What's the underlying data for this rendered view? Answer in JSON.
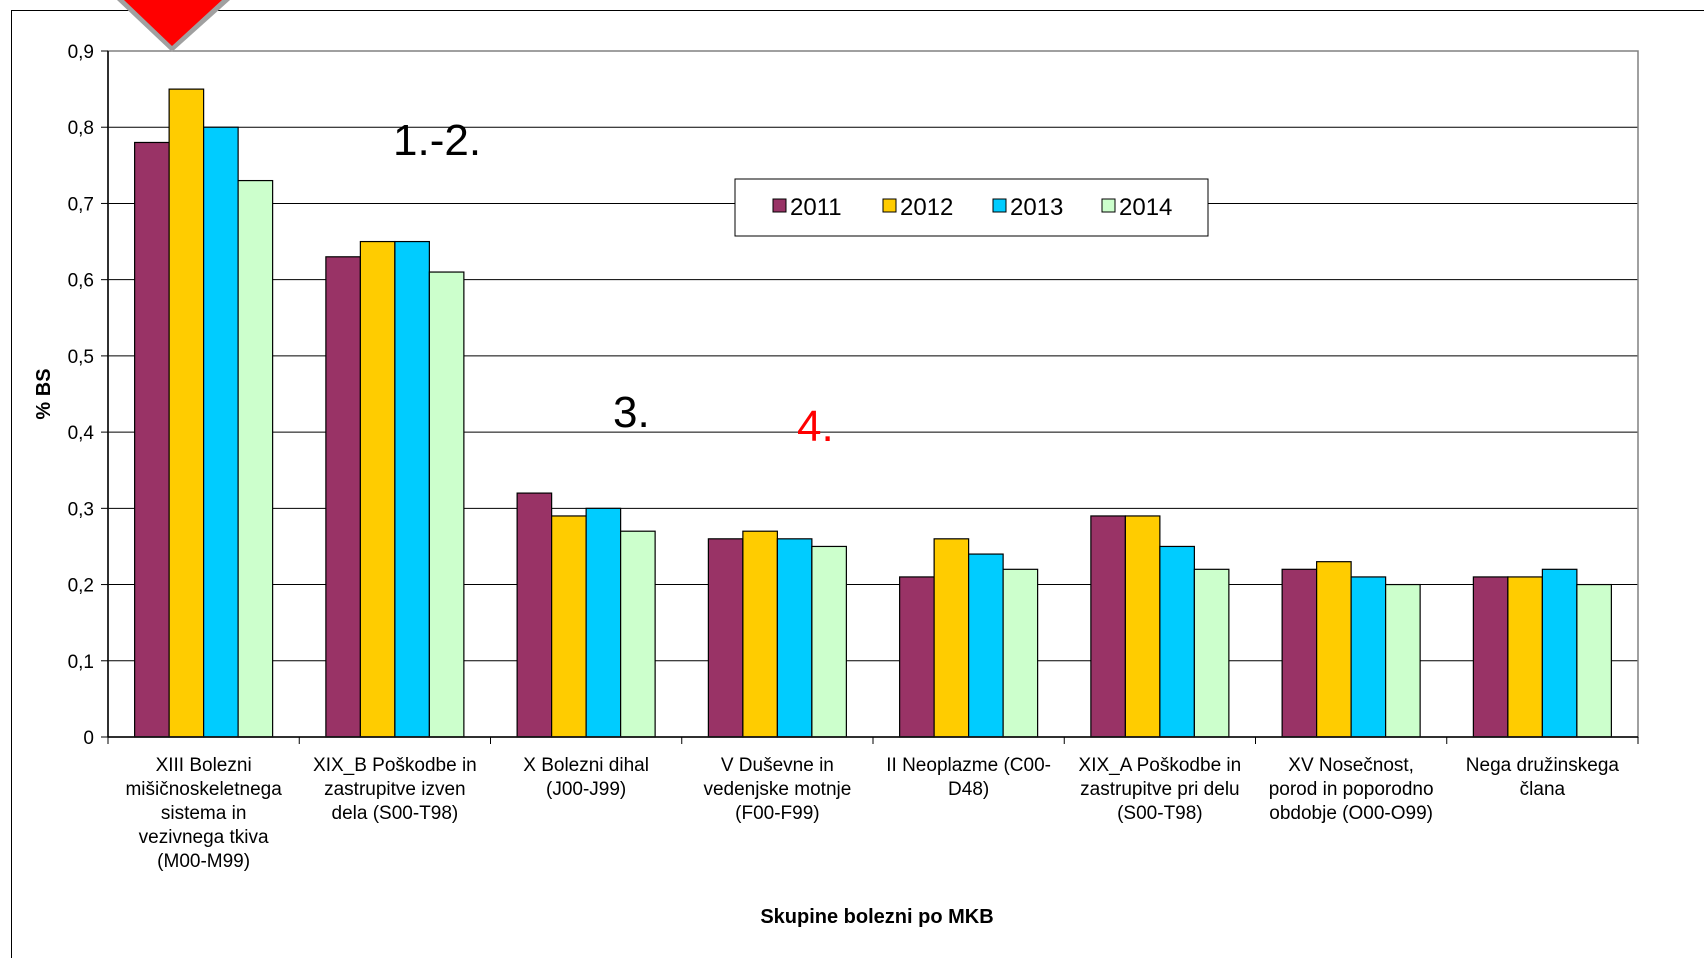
{
  "chart_data": {
    "type": "bar",
    "title": "",
    "xlabel": "Skupine bolezni po MKB",
    "ylabel": "% BS",
    "ylim": [
      0,
      0.9
    ],
    "yticks": [
      "0",
      "0,1",
      "0,2",
      "0,3",
      "0,4",
      "0,5",
      "0,6",
      "0,7",
      "0,8",
      "0,9"
    ],
    "grid": true,
    "legend_position": "top-center",
    "categories": [
      [
        "XIII Bolezni",
        "mišičnoskeletnega",
        "sistema in",
        "vezivnega tkiva",
        "(M00-M99)"
      ],
      [
        "XIX_B Poškodbe in",
        "zastrupitve izven",
        "dela (S00-T98)"
      ],
      [
        "X Bolezni dihal",
        "(J00-J99)"
      ],
      [
        "V Duševne in",
        "vedenjske motnje",
        "(F00-F99)"
      ],
      [
        "II Neoplazme (C00-",
        "D48)"
      ],
      [
        "XIX_A Poškodbe in",
        "zastrupitve pri delu",
        "(S00-T98)"
      ],
      [
        "XV Nosečnost,",
        "porod in poporodno",
        "obdobje (O00-O99)"
      ],
      [
        "Nega družinskega",
        "člana"
      ]
    ],
    "series": [
      {
        "name": "2011",
        "color": "#993366",
        "values": [
          0.78,
          0.63,
          0.32,
          0.26,
          0.21,
          0.29,
          0.22,
          0.21
        ]
      },
      {
        "name": "2012",
        "color": "#FFCC00",
        "values": [
          0.85,
          0.65,
          0.29,
          0.27,
          0.26,
          0.29,
          0.23,
          0.21
        ]
      },
      {
        "name": "2013",
        "color": "#00CCFF",
        "values": [
          0.8,
          0.65,
          0.3,
          0.26,
          0.24,
          0.25,
          0.21,
          0.22
        ]
      },
      {
        "name": "2014",
        "color": "#CCFFCC",
        "values": [
          0.73,
          0.61,
          0.27,
          0.25,
          0.22,
          0.22,
          0.2,
          0.2
        ]
      }
    ],
    "annotations": [
      {
        "text": "1.-2.",
        "color": "#000000"
      },
      {
        "text": "3.",
        "color": "#000000"
      },
      {
        "text": "4.",
        "color": "#FF0000"
      }
    ],
    "marker": {
      "name": "red-arrow-marker",
      "color": "#FF0000"
    }
  }
}
